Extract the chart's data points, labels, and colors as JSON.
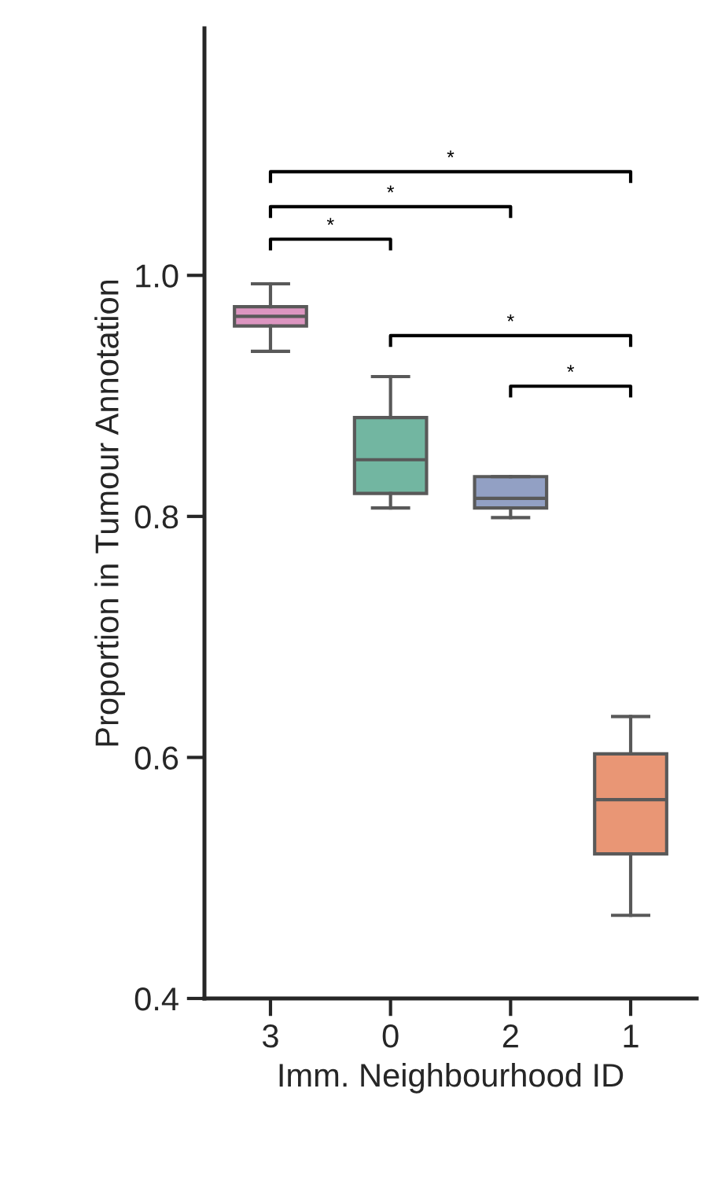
{
  "chart_data": {
    "type": "box",
    "xlabel": "Imm. Neighbourhood ID",
    "ylabel": "Proportion in Tumour Annotation",
    "categories": [
      "3",
      "0",
      "2",
      "1"
    ],
    "colors": [
      "#dc95c0",
      "#72b6a1",
      "#92a0c4",
      "#e99675"
    ],
    "boxes": [
      {
        "low": 0.937,
        "q1": 0.958,
        "median": 0.966,
        "q3": 0.974,
        "high": 0.993
      },
      {
        "low": 0.807,
        "q1": 0.819,
        "median": 0.847,
        "q3": 0.882,
        "high": 0.916
      },
      {
        "low": 0.799,
        "q1": 0.807,
        "median": 0.815,
        "q3": 0.833,
        "high": 0.833
      },
      {
        "low": 0.469,
        "q1": 0.52,
        "median": 0.565,
        "q3": 0.603,
        "high": 0.634
      }
    ],
    "ylim": [
      0.4,
      1.205
    ],
    "yticks": [
      {
        "value": 0.4,
        "label": "0.4"
      },
      {
        "value": 0.6,
        "label": "0.6"
      },
      {
        "value": 0.8,
        "label": "0.8"
      },
      {
        "value": 1.0,
        "label": "1.0"
      }
    ],
    "annotations": [
      "*",
      "*",
      "*",
      "*",
      "*"
    ],
    "grid": false,
    "legend": false
  }
}
